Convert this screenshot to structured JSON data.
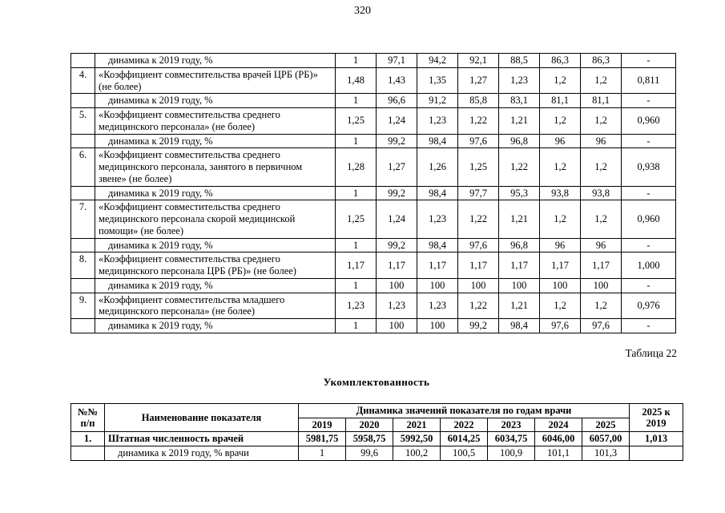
{
  "page": {
    "number": "320",
    "table_caption": "Таблица 22",
    "section_title": "Укомплектованность"
  },
  "table1": {
    "rows": [
      {
        "num": "",
        "name": "динамика к 2019 году, %",
        "indent": true,
        "values": [
          "1",
          "97,1",
          "94,2",
          "92,1",
          "88,5",
          "86,3",
          "86,3",
          "-"
        ]
      },
      {
        "num": "4.",
        "name": "«Коэффициент совместительства врачей ЦРБ (РБ)»  (не более)",
        "values": [
          "1,48",
          "1,43",
          "1,35",
          "1,27",
          "1,23",
          "1,2",
          "1,2",
          "0,811"
        ]
      },
      {
        "num": "",
        "name": "динамика к 2019 году, %",
        "indent": true,
        "values": [
          "1",
          "96,6",
          "91,2",
          "85,8",
          "83,1",
          "81,1",
          "81,1",
          "-"
        ]
      },
      {
        "num": "5.",
        "name": "«Коэффициент совместительства среднего медицинского персонала» (не более)",
        "values": [
          "1,25",
          "1,24",
          "1,23",
          "1,22",
          "1,21",
          "1,2",
          "1,2",
          "0,960"
        ]
      },
      {
        "num": "",
        "name": "динамика к 2019 году, %",
        "indent": true,
        "values": [
          "1",
          "99,2",
          "98,4",
          "97,6",
          "96,8",
          "96",
          "96",
          "-"
        ]
      },
      {
        "num": "6.",
        "name": "«Коэффициент совместительства среднего медицинского персонала, занятого в первичном звене» (не более)",
        "values": [
          "1,28",
          "1,27",
          "1,26",
          "1,25",
          "1,22",
          "1,2",
          "1,2",
          "0,938"
        ]
      },
      {
        "num": "",
        "name": "динамика к 2019 году, %",
        "indent": true,
        "values": [
          "1",
          "99,2",
          "98,4",
          "97,7",
          "95,3",
          "93,8",
          "93,8",
          "-"
        ]
      },
      {
        "num": "7.",
        "name": "«Коэффициент совместительства среднего медицинского персонала скорой медицинской помощи»  (не более)",
        "values": [
          "1,25",
          "1,24",
          "1,23",
          "1,22",
          "1,21",
          "1,2",
          "1,2",
          "0,960"
        ]
      },
      {
        "num": "",
        "name": "динамика к 2019 году, %",
        "indent": true,
        "values": [
          "1",
          "99,2",
          "98,4",
          "97,6",
          "96,8",
          "96",
          "96",
          "-"
        ]
      },
      {
        "num": "8.",
        "name": "«Коэффициент совместительства среднего медицинского персонала ЦРБ (РБ)»  (не более)",
        "values": [
          "1,17",
          "1,17",
          "1,17",
          "1,17",
          "1,17",
          "1,17",
          "1,17",
          "1,000"
        ]
      },
      {
        "num": "",
        "name": "динамика к 2019 году, %",
        "indent": true,
        "values": [
          "1",
          "100",
          "100",
          "100",
          "100",
          "100",
          "100",
          "-"
        ]
      },
      {
        "num": "9.",
        "name": "«Коэффициент совместительства младшего медицинского персонала» (не более)",
        "values": [
          "1,23",
          "1,23",
          "1,23",
          "1,22",
          "1,21",
          "1,2",
          "1,2",
          "0,976"
        ]
      },
      {
        "num": "",
        "name": "динамика к 2019 году, %",
        "indent": true,
        "values": [
          "1",
          "100",
          "100",
          "99,2",
          "98,4",
          "97,6",
          "97,6",
          "-"
        ]
      }
    ]
  },
  "table2": {
    "header": {
      "col_num": "№№\nп/п",
      "col_name": "Наименование показателя",
      "col_group": "Динамика значений показателя по годам врачи",
      "col_ratio": "2025 к\n2019",
      "years": [
        "2019",
        "2020",
        "2021",
        "2022",
        "2023",
        "2024",
        "2025"
      ]
    },
    "rows": [
      {
        "num": "1.",
        "name": "Штатная численность врачей",
        "bold": true,
        "values": [
          "5981,75",
          "5958,75",
          "5992,50",
          "6014,25",
          "6034,75",
          "6046,00",
          "6057,00"
        ],
        "ratio": "1,013"
      },
      {
        "num": "",
        "name": "динамика к 2019 году, % врачи",
        "indent": true,
        "values": [
          "1",
          "99,6",
          "100,2",
          "100,5",
          "100,9",
          "101,1",
          "101,3"
        ],
        "ratio": ""
      }
    ]
  }
}
